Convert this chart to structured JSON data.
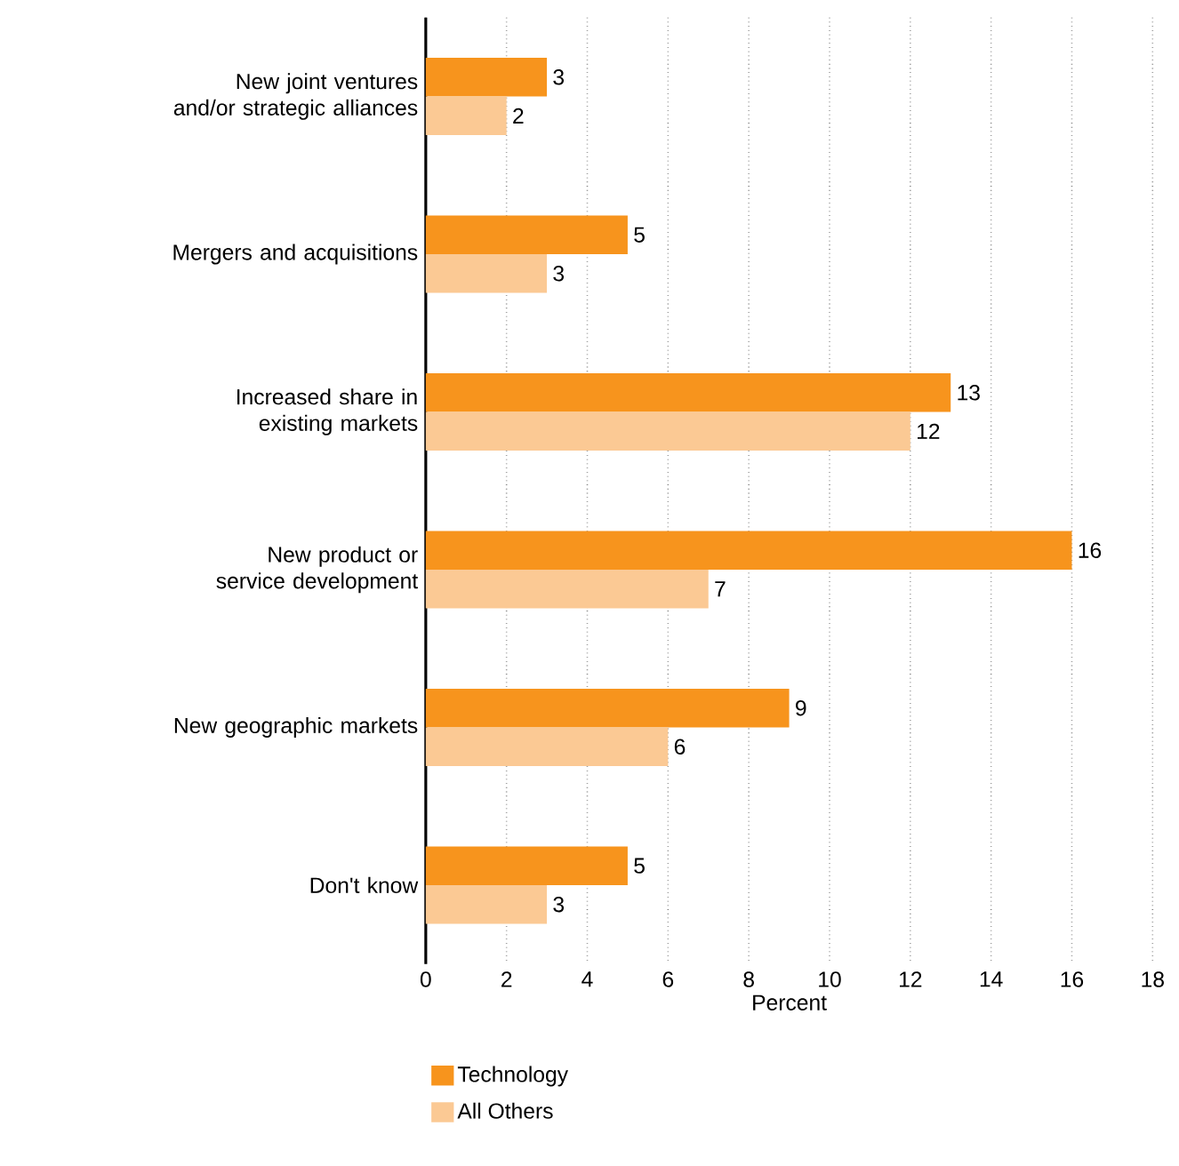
{
  "chart_data": {
    "type": "bar",
    "orientation": "horizontal",
    "xlabel": "Percent",
    "categories": [
      "New joint ventures and/or strategic alliances",
      "Mergers and acquisitions",
      "Increased share in existing markets",
      "New product or service development",
      "New geographic markets",
      "Don't know"
    ],
    "series": [
      {
        "name": "Technology",
        "color": "#f7941d",
        "values": [
          3,
          5,
          13,
          16,
          9,
          5
        ]
      },
      {
        "name": "All Others",
        "color": "#fbc994",
        "values": [
          2,
          3,
          12,
          7,
          6,
          3
        ]
      }
    ],
    "xlim": [
      0,
      18
    ],
    "xticks": [
      0,
      2,
      4,
      6,
      8,
      10,
      12,
      14,
      16,
      18
    ],
    "grid": "x",
    "legend": "bottom",
    "data_labels": true
  }
}
